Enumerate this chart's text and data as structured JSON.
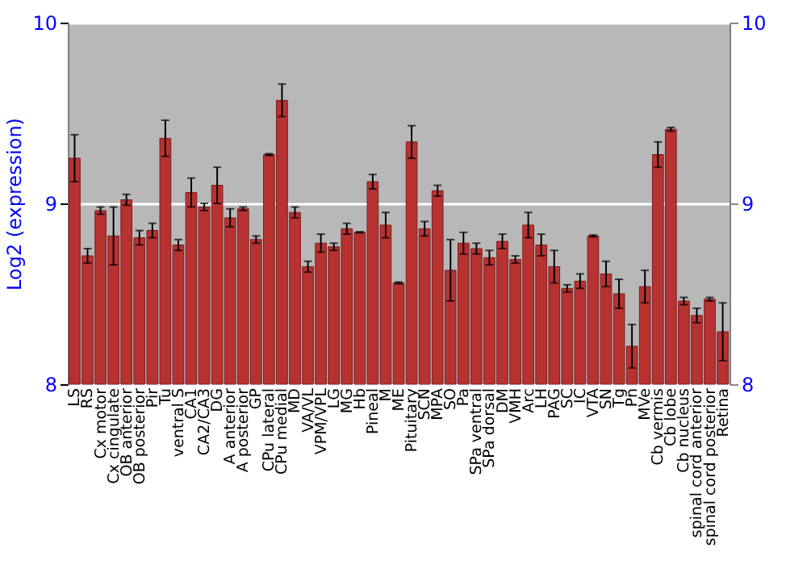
{
  "chart_data": {
    "type": "bar",
    "ylabel": "Log2 (expression)",
    "categories": [
      "LS",
      "RS",
      "Cx motor",
      "Cx cingulate",
      "OB anterior",
      "OB posterior",
      "Pir",
      "Tu",
      "ventral S",
      "CA1",
      "CA2/CA3",
      "DG",
      "A anterior",
      "A posterior",
      "GP",
      "CPu lateral",
      "CPu medial",
      "MD",
      "VA/VL",
      "VPM/VPL",
      "LG",
      "MG",
      "Hb",
      "Pineal",
      "M",
      "ME",
      "Pituitary",
      "SCN",
      "MPA",
      "SO",
      "Pa",
      "SPa ventral",
      "SPa dorsal",
      "DM",
      "VMH",
      "Arc",
      "LH",
      "PAG",
      "SC",
      "IC",
      "VTA",
      "SN",
      "Tg",
      "Pn",
      "MVe",
      "Cb vermis",
      "Cb lobe",
      "Cb nucleus",
      "spinal cord anterior",
      "spinal cord posterior",
      "Retina"
    ],
    "values": [
      9.25,
      8.71,
      8.96,
      8.82,
      9.02,
      8.81,
      8.85,
      9.36,
      8.77,
      9.06,
      8.98,
      9.1,
      8.92,
      8.97,
      8.8,
      9.27,
      9.57,
      8.95,
      8.65,
      8.78,
      8.76,
      8.86,
      8.84,
      9.12,
      8.88,
      8.56,
      9.34,
      8.86,
      9.07,
      8.63,
      8.78,
      8.75,
      8.7,
      8.79,
      8.69,
      8.88,
      8.77,
      8.65,
      8.53,
      8.57,
      8.82,
      8.61,
      8.5,
      8.21,
      8.54,
      9.27,
      9.41,
      8.46,
      8.38,
      8.47,
      8.29
    ],
    "errors": [
      0.13,
      0.04,
      0.02,
      0.16,
      0.03,
      0.04,
      0.04,
      0.1,
      0.03,
      0.08,
      0.02,
      0.1,
      0.05,
      0.01,
      0.02,
      0.005,
      0.09,
      0.03,
      0.03,
      0.05,
      0.02,
      0.03,
      0.003,
      0.04,
      0.07,
      0.005,
      0.09,
      0.04,
      0.03,
      0.17,
      0.06,
      0.03,
      0.04,
      0.04,
      0.02,
      0.07,
      0.06,
      0.09,
      0.02,
      0.04,
      0.005,
      0.07,
      0.08,
      0.12,
      0.09,
      0.07,
      0.01,
      0.02,
      0.04,
      0.01,
      0.16
    ],
    "color": "#b83232",
    "ylim": [
      8,
      10
    ],
    "yticks": [
      8,
      9,
      10
    ],
    "y2lim": [
      8,
      10
    ],
    "y2ticks": [
      8,
      9,
      10
    ],
    "grid": true
  }
}
